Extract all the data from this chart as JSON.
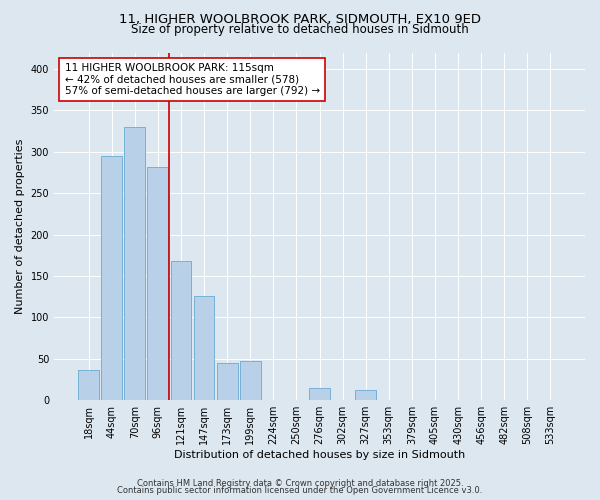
{
  "title_line1": "11, HIGHER WOOLBROOK PARK, SIDMOUTH, EX10 9ED",
  "title_line2": "Size of property relative to detached houses in Sidmouth",
  "xlabel": "Distribution of detached houses by size in Sidmouth",
  "ylabel": "Number of detached properties",
  "bin_labels": [
    "18sqm",
    "44sqm",
    "70sqm",
    "96sqm",
    "121sqm",
    "147sqm",
    "173sqm",
    "199sqm",
    "224sqm",
    "250sqm",
    "276sqm",
    "302sqm",
    "327sqm",
    "353sqm",
    "379sqm",
    "405sqm",
    "430sqm",
    "456sqm",
    "482sqm",
    "508sqm",
    "533sqm"
  ],
  "bar_heights": [
    37,
    295,
    330,
    282,
    168,
    126,
    45,
    47,
    0,
    0,
    15,
    0,
    12,
    0,
    0,
    0,
    0,
    0,
    0,
    0,
    0
  ],
  "bar_color": "#b8d0e8",
  "bar_edge_color": "#6aaad4",
  "vline_x_index": 4,
  "vline_color": "#cc0000",
  "annotation_text": "11 HIGHER WOOLBROOK PARK: 115sqm\n← 42% of detached houses are smaller (578)\n57% of semi-detached houses are larger (792) →",
  "annotation_box_facecolor": "#ffffff",
  "annotation_box_edgecolor": "#cc0000",
  "ylim": [
    0,
    420
  ],
  "yticks": [
    0,
    50,
    100,
    150,
    200,
    250,
    300,
    350,
    400
  ],
  "background_color": "#dce7f0",
  "plot_bg_color": "#dce7f0",
  "footer_line1": "Contains HM Land Registry data © Crown copyright and database right 2025.",
  "footer_line2": "Contains public sector information licensed under the Open Government Licence v3.0.",
  "title_fontsize": 9.5,
  "subtitle_fontsize": 8.5,
  "axis_label_fontsize": 8,
  "tick_label_fontsize": 7,
  "annotation_fontsize": 7.5,
  "footer_fontsize": 6
}
